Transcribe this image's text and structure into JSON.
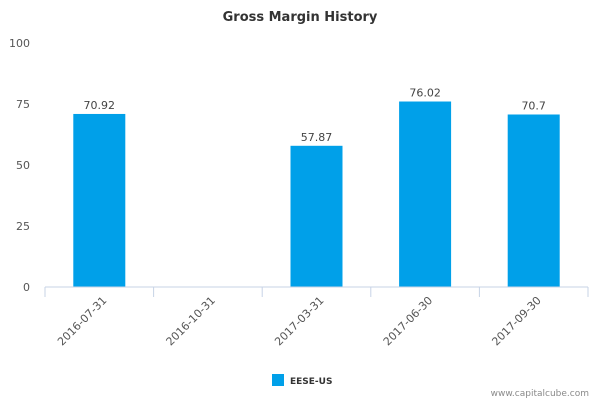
{
  "chart_data": {
    "type": "bar",
    "title": "Gross Margin History",
    "xlabel": "",
    "ylabel": "",
    "categories": [
      "2016-07-31",
      "2016-10-31",
      "2017-03-31",
      "2017-06-30",
      "2017-09-30"
    ],
    "series": [
      {
        "name": "EESE-US",
        "values": [
          70.92,
          null,
          57.87,
          76.02,
          70.7
        ],
        "labels": [
          "70.92",
          "",
          "57.87",
          "76.02",
          "70.7"
        ],
        "color": "#00a0e9"
      }
    ],
    "ylim": [
      0,
      100
    ],
    "yticks": [
      0,
      25,
      50,
      75,
      100
    ],
    "ytick_labels": [
      "0",
      "25",
      "50",
      "75",
      "100"
    ],
    "grid": false,
    "legend": {
      "position": "bottom-center",
      "label": "EESE-US"
    }
  },
  "footer": {
    "watermark": "www.capitalcube.com"
  },
  "colors": {
    "bar": "#00a0e9",
    "axis": "#c7d3e6",
    "text": "#555555"
  }
}
